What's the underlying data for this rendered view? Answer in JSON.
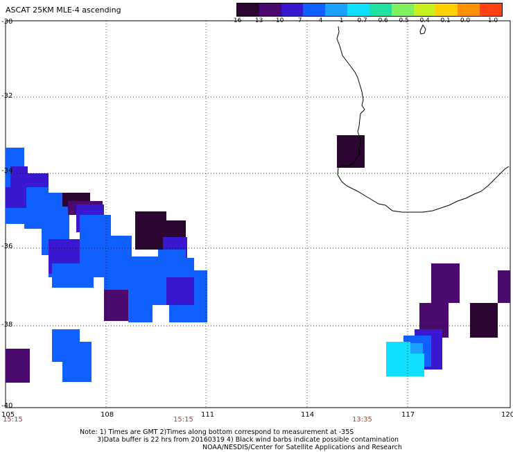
{
  "title": "ASCAT 25KM MLE-4 ascending",
  "colorbar": {
    "labels": [
      "-16",
      "-13",
      "-10",
      "-7",
      "-4",
      "-1",
      "-0.7",
      "-0.6",
      "-0.5",
      "-0.4",
      "-0.1",
      "0.0",
      "1.0"
    ],
    "colors": [
      "#2a0630",
      "#4a0a6e",
      "#3a18d0",
      "#1060ff",
      "#1aa0ff",
      "#10e0ff",
      "#20e0a0",
      "#80f060",
      "#c8f020",
      "#ffd000",
      "#ff9000",
      "#ff4010"
    ]
  },
  "axes": {
    "lat_labels": [
      "-30",
      "-32",
      "-34",
      "-36",
      "-38",
      "-40"
    ],
    "lon_labels": [
      "105",
      "108",
      "111",
      "114",
      "117",
      "120"
    ],
    "time_labels": [
      "15:15",
      "15:15",
      "13:35"
    ]
  },
  "notes": {
    "line1": "Note: 1) Times are GMT 2)Times along bottom correspond to measurement at -35S",
    "line2": "3)Data buffer is 22 hrs from 20160319 4) Black wind barbs indicate possible contamination",
    "line3": "NOAA/NESDIS/Center for Satellite Applications and Research"
  },
  "legend_colors": {
    "v16": "#2a0630",
    "v13": "#4a0a6e",
    "v10": "#3a18d0",
    "v7": "#1060ff",
    "v4": "#1aa0ff",
    "v1": "#10e0ff"
  }
}
